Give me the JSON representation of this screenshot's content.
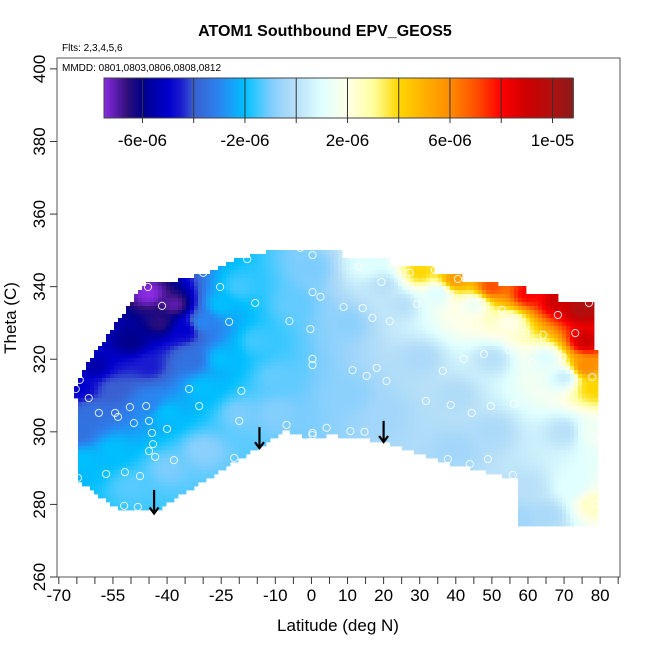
{
  "chart_data": {
    "type": "heatmap",
    "title": "ATOM1 Southbound EPV_GEOS5",
    "subtitle_flights": "Flts: 2,3,4,5,6",
    "subtitle_dates": "MMDD: 0801,0803,0806,0808,0812",
    "xlabel": "Latitude (deg N)",
    "ylabel": "Theta (C)",
    "xlim": [
      -70.5,
      85.5
    ],
    "ylim": [
      260,
      403
    ],
    "x_ticks": [
      -70,
      -65,
      -60,
      -55,
      -50,
      -45,
      -40,
      -35,
      -30,
      -25,
      -20,
      -15,
      -10,
      -5,
      0,
      5,
      10,
      15,
      20,
      25,
      30,
      35,
      40,
      45,
      50,
      55,
      60,
      65,
      70,
      75,
      80,
      85
    ],
    "x_tick_labels": [
      {
        "value": -70,
        "label": "-70"
      },
      {
        "value": -55,
        "label": "-55"
      },
      {
        "value": -40,
        "label": "-40"
      },
      {
        "value": -25,
        "label": "-25"
      },
      {
        "value": -10,
        "label": "-10"
      },
      {
        "value": 0,
        "label": "0"
      },
      {
        "value": 10,
        "label": "10"
      },
      {
        "value": 20,
        "label": "20"
      },
      {
        "value": 30,
        "label": "30"
      },
      {
        "value": 40,
        "label": "40"
      },
      {
        "value": 50,
        "label": "50"
      },
      {
        "value": 60,
        "label": "60"
      },
      {
        "value": 70,
        "label": "70"
      },
      {
        "value": 80,
        "label": "80"
      }
    ],
    "y_tick_labels": [
      {
        "value": 260,
        "label": "260"
      },
      {
        "value": 280,
        "label": "280"
      },
      {
        "value": 300,
        "label": "300"
      },
      {
        "value": 320,
        "label": "320"
      },
      {
        "value": 340,
        "label": "340"
      },
      {
        "value": 360,
        "label": "360"
      },
      {
        "value": 380,
        "label": "380"
      },
      {
        "value": 400,
        "label": "400"
      }
    ],
    "grid": false,
    "colorbar": {
      "range": [
        -7.5e-06,
        1.08e-05
      ],
      "breaks": [
        -6e-06,
        -4e-06,
        -2e-06,
        0,
        2e-06,
        4e-06,
        6e-06,
        8e-06,
        1e-05
      ],
      "tick_labels": [
        {
          "value": -6e-06,
          "label": "-6e-06"
        },
        {
          "value": -2e-06,
          "label": "-2e-06"
        },
        {
          "value": 2e-06,
          "label": "2e-06"
        },
        {
          "value": 6e-06,
          "label": "6e-06"
        },
        {
          "value": 1e-05,
          "label": "1e-05"
        }
      ],
      "placement": "top",
      "color_stops": [
        [
          -7.5e-06,
          "#8a2be2"
        ],
        [
          -6.6e-06,
          "#30107a"
        ],
        [
          -6e-06,
          "#00008b"
        ],
        [
          -5e-06,
          "#0000cd"
        ],
        [
          -4.5e-06,
          "#1a1ad0"
        ],
        [
          -4e-06,
          "#3a5fd0"
        ],
        [
          -3e-06,
          "#2a85f0"
        ],
        [
          -2e-06,
          "#00bfff"
        ],
        [
          -1.5e-06,
          "#3ec8ff"
        ],
        [
          -1e-06,
          "#7ccdfd"
        ],
        [
          -5e-07,
          "#a2d6fa"
        ],
        [
          0,
          "#b8e0f8"
        ],
        [
          1e-06,
          "#e0ffff"
        ],
        [
          2e-06,
          "#ffffe8"
        ],
        [
          3e-06,
          "#ffffa0"
        ],
        [
          4e-06,
          "#ffd700"
        ],
        [
          5e-06,
          "#ffb000"
        ],
        [
          6e-06,
          "#ff8c00"
        ],
        [
          7e-06,
          "#ff5000"
        ],
        [
          8e-06,
          "#ff0000"
        ],
        [
          9e-06,
          "#cd0000"
        ],
        [
          1e-05,
          "#b01010"
        ],
        [
          1.08e-05,
          "#8b1a1a"
        ]
      ]
    },
    "data_region": [
      [
        -65.8,
        310.7
      ],
      [
        -63.3,
        317.0
      ],
      [
        -45.6,
        341.8
      ],
      [
        -37.2,
        341.8
      ],
      [
        -28.9,
        343.8
      ],
      [
        -19.7,
        347.9
      ],
      [
        -11.7,
        349.8
      ],
      [
        8.9,
        350.1
      ],
      [
        8.9,
        347.9
      ],
      [
        21.4,
        347.9
      ],
      [
        21.4,
        346.0
      ],
      [
        34.4,
        346.0
      ],
      [
        34.4,
        343.8
      ],
      [
        42.2,
        343.8
      ],
      [
        42.2,
        341.8
      ],
      [
        51.7,
        341.8
      ],
      [
        51.7,
        339.9
      ],
      [
        59.7,
        339.9
      ],
      [
        59.7,
        338.0
      ],
      [
        68.6,
        338.0
      ],
      [
        68.6,
        335.8
      ],
      [
        77.8,
        335.8
      ],
      [
        77.8,
        322.0
      ],
      [
        78.9,
        322.0
      ],
      [
        78.9,
        309.9
      ],
      [
        79.7,
        309.9
      ],
      [
        79.7,
        273.8
      ],
      [
        56.7,
        273.8
      ],
      [
        56.7,
        287.0
      ],
      [
        37.5,
        291.4
      ],
      [
        20.0,
        297.2
      ],
      [
        5.3,
        299.1
      ],
      [
        -0.3,
        298.3
      ],
      [
        -7.2,
        300.2
      ],
      [
        -32.5,
        284.8
      ],
      [
        -43.6,
        277.9
      ],
      [
        -53.1,
        278.5
      ],
      [
        -65.0,
        286.7
      ],
      [
        -65.0,
        308.8
      ],
      [
        -65.8,
        308.8
      ]
    ],
    "field_samples": [
      [
        -45,
        338,
        -7.5e-06
      ],
      [
        -38,
        335,
        -7e-06
      ],
      [
        -42,
        330,
        -6.5e-06
      ],
      [
        -50,
        325,
        -6e-06
      ],
      [
        -60,
        318,
        -5.5e-06
      ],
      [
        -64,
        312,
        -5e-06
      ],
      [
        -35,
        328,
        -5e-06
      ],
      [
        -30,
        330,
        -3e-06
      ],
      [
        -25,
        335,
        -2e-06
      ],
      [
        -20,
        340,
        -1.5e-06
      ],
      [
        -33,
        320,
        -3.5e-06
      ],
      [
        -45,
        318,
        -4.5e-06
      ],
      [
        -55,
        312,
        -4e-06
      ],
      [
        -60,
        305,
        -3.5e-06
      ],
      [
        -64,
        300,
        -3.5e-06
      ],
      [
        -63,
        292,
        -2e-06
      ],
      [
        -55,
        295,
        -2e-06
      ],
      [
        -45,
        308,
        -3e-06
      ],
      [
        -40,
        305,
        -2e-06
      ],
      [
        -30,
        312,
        -2e-06
      ],
      [
        -25,
        320,
        -2e-06
      ],
      [
        -15,
        325,
        -1.5e-06
      ],
      [
        -50,
        285,
        -1.3e-06
      ],
      [
        -40,
        290,
        -1e-06
      ],
      [
        -30,
        295,
        -8e-07
      ],
      [
        -20,
        305,
        -1e-06
      ],
      [
        -10,
        315,
        -1.2e-06
      ],
      [
        -5,
        335,
        -1.2e-06
      ],
      [
        0,
        345,
        -1e-06
      ],
      [
        -10,
        305,
        -9e-07
      ],
      [
        10,
        330,
        -8e-07
      ],
      [
        10,
        310,
        -8e-07
      ],
      [
        20,
        305,
        -5e-07
      ],
      [
        30,
        320,
        -3e-07
      ],
      [
        40,
        310,
        -2e-07
      ],
      [
        50,
        320,
        0
      ],
      [
        50,
        300,
        -3e-07
      ],
      [
        40,
        295,
        -5e-07
      ],
      [
        20,
        340,
        0
      ],
      [
        15,
        346,
        1e-06
      ],
      [
        30,
        344,
        4e-06
      ],
      [
        40,
        342,
        5.5e-06
      ],
      [
        50,
        340,
        7e-06
      ],
      [
        60,
        338,
        8e-06
      ],
      [
        68,
        336,
        9e-06
      ],
      [
        75,
        334,
        1e-05
      ],
      [
        76,
        325,
        9e-06
      ],
      [
        76,
        318,
        6e-06
      ],
      [
        78,
        312,
        4e-06
      ],
      [
        78,
        300,
        1.5e-06
      ],
      [
        70,
        300,
        0
      ],
      [
        65,
        320,
        1e-06
      ],
      [
        55,
        330,
        2e-06
      ],
      [
        45,
        335,
        1.5e-06
      ],
      [
        35,
        338,
        1e-06
      ],
      [
        25,
        335,
        0
      ],
      [
        60,
        285,
        0
      ],
      [
        72,
        285,
        1e-06
      ],
      [
        78,
        280,
        2.5e-06
      ],
      [
        65,
        277,
        -3e-07
      ],
      [
        58,
        276,
        -5e-07
      ],
      [
        70,
        315,
        5e-07
      ]
    ],
    "observations": [
      [
        -17.8,
        347.6
      ],
      [
        0.3,
        348.7
      ],
      [
        -3.1,
        350.7
      ],
      [
        -36.1,
        343.8
      ],
      [
        -30.0,
        343.8
      ],
      [
        -45.3,
        339.9
      ],
      [
        -25.3,
        339.9
      ],
      [
        -41.4,
        334.7
      ],
      [
        -15.6,
        335.5
      ],
      [
        0.3,
        338.5
      ],
      [
        2.5,
        337.2
      ],
      [
        -22.8,
        330.3
      ],
      [
        -6.1,
        330.5
      ],
      [
        -0.3,
        328.3
      ],
      [
        0.3,
        320.1
      ],
      [
        0.3,
        318.4
      ],
      [
        -64.2,
        314.3
      ],
      [
        -65.3,
        311.8
      ],
      [
        -61.7,
        309.3
      ],
      [
        -33.9,
        311.8
      ],
      [
        -19.4,
        311.3
      ],
      [
        -58.9,
        305.2
      ],
      [
        -54.4,
        305.2
      ],
      [
        -53.6,
        304.1
      ],
      [
        -50.3,
        306.8
      ],
      [
        -45.8,
        307.1
      ],
      [
        -31.1,
        307.1
      ],
      [
        -49.2,
        302.4
      ],
      [
        -45.0,
        303.0
      ],
      [
        -40.0,
        300.8
      ],
      [
        -20.0,
        303.0
      ],
      [
        -6.9,
        301.9
      ],
      [
        -44.2,
        299.7
      ],
      [
        0.3,
        299.7
      ],
      [
        0.3,
        299.1
      ],
      [
        4.2,
        301.1
      ],
      [
        -43.9,
        296.6
      ],
      [
        -45.0,
        294.7
      ],
      [
        -43.3,
        293.1
      ],
      [
        -38.1,
        292.2
      ],
      [
        -21.4,
        292.8
      ],
      [
        -64.7,
        287.3
      ],
      [
        -56.9,
        288.4
      ],
      [
        -51.7,
        288.9
      ],
      [
        -47.5,
        287.8
      ],
      [
        -51.9,
        279.6
      ],
      [
        -48.1,
        279.3
      ],
      [
        13.1,
        345.4
      ],
      [
        27.2,
        343.8
      ],
      [
        34.2,
        344.6
      ],
      [
        40.6,
        342.1
      ],
      [
        19.4,
        341.3
      ],
      [
        29.2,
        335.2
      ],
      [
        8.9,
        334.4
      ],
      [
        14.2,
        334.1
      ],
      [
        16.9,
        331.4
      ],
      [
        21.7,
        330.5
      ],
      [
        52.8,
        333.6
      ],
      [
        46.7,
        329.2
      ],
      [
        68.3,
        332.2
      ],
      [
        76.9,
        335.5
      ],
      [
        59.4,
        327.2
      ],
      [
        64.2,
        326.7
      ],
      [
        73.1,
        327.2
      ],
      [
        42.2,
        320.1
      ],
      [
        47.8,
        321.4
      ],
      [
        54.7,
        322.6
      ],
      [
        61.1,
        319.0
      ],
      [
        69.7,
        320.6
      ],
      [
        11.4,
        317.0
      ],
      [
        15.3,
        315.4
      ],
      [
        18.1,
        317.6
      ],
      [
        20.8,
        314.0
      ],
      [
        36.4,
        316.8
      ],
      [
        77.8,
        315.1
      ],
      [
        31.7,
        308.5
      ],
      [
        38.6,
        307.4
      ],
      [
        44.4,
        305.2
      ],
      [
        49.7,
        307.1
      ],
      [
        56.1,
        307.7
      ],
      [
        66.4,
        307.9
      ],
      [
        10.8,
        300.2
      ],
      [
        14.7,
        300.0
      ],
      [
        78.3,
        298.3
      ],
      [
        79.7,
        297.2
      ],
      [
        37.8,
        292.5
      ],
      [
        43.9,
        291.1
      ],
      [
        48.9,
        292.5
      ],
      [
        55.8,
        288.1
      ],
      [
        79.4,
        288.1
      ],
      [
        78.6,
        280.1
      ],
      [
        79.2,
        273.8
      ]
    ],
    "arrows": [
      {
        "lat": -43.6,
        "theta_from": 284.0,
        "theta_to": 277.5
      },
      {
        "lat": -14.4,
        "theta_from": 301.3,
        "theta_to": 295.5
      },
      {
        "lat": 20.0,
        "theta_from": 303.0,
        "theta_to": 297.2
      }
    ]
  }
}
